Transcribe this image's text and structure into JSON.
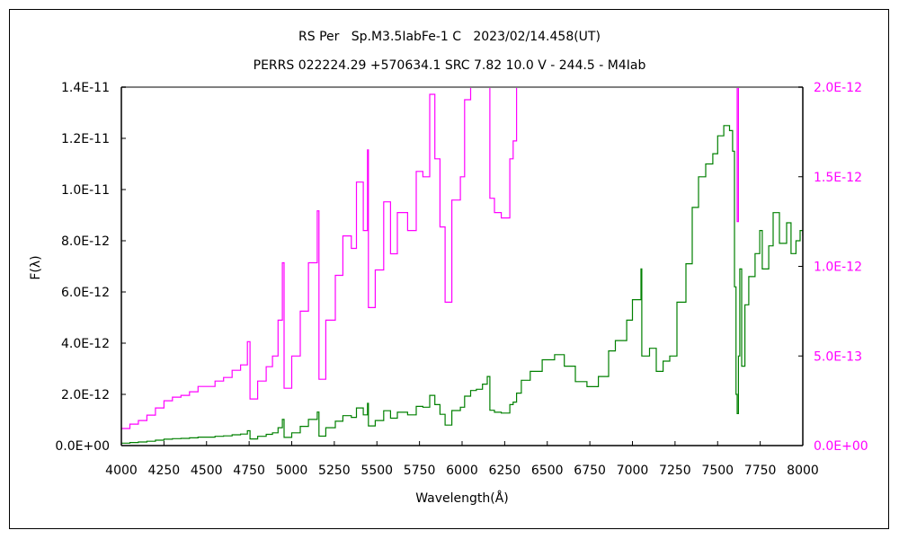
{
  "chart_data": {
    "type": "line",
    "title": "RS Per   Sp.M3.5IabFe-1 C   2023/02/14.458(UT)",
    "subtitle": "PERRS 022224.29 +570634.1 SRC 7.82 10.0 V - 244.5 - M4Iab",
    "xlabel": "Wavelength(Å)",
    "ylabel": "F(λ)",
    "xlim": [
      4000,
      8000
    ],
    "ylim_left": [
      0,
      1.4e-11
    ],
    "ylim_right": [
      0,
      2e-12
    ],
    "x_ticks": [
      4000,
      4250,
      4500,
      4750,
      5000,
      5250,
      5500,
      5750,
      6000,
      6250,
      6500,
      6750,
      7000,
      7250,
      7500,
      7750,
      8000
    ],
    "x_tick_labels": [
      "4000",
      "4250",
      "4500",
      "4750",
      "5000",
      "5250",
      "5500",
      "5750",
      "6000",
      "6250",
      "6500",
      "6750",
      "7000",
      "7250",
      "7500",
      "7750",
      "8000"
    ],
    "y_left_ticks": [
      0,
      2e-12,
      4e-12,
      6e-12,
      8e-12,
      1e-11,
      1.2e-11,
      1.4e-11
    ],
    "y_left_tick_labels": [
      "0.0E+00",
      "2.0E-12",
      "4.0E-12",
      "6.0E-12",
      "8.0E-12",
      "1.0E-11",
      "1.2E-11",
      "1.4E-11"
    ],
    "y_right_ticks": [
      0,
      5e-13,
      1e-12,
      1.5e-12,
      2e-12
    ],
    "y_right_tick_labels": [
      "0.0E+00",
      "5.0E-13",
      "1.0E-12",
      "1.5E-12",
      "2.0E-12"
    ],
    "grid": false,
    "flux_unit": 1e-12,
    "series": [
      {
        "name": "flux-left-axis",
        "axis": "left",
        "color": "#008000"
      },
      {
        "name": "flux-right-axis",
        "axis": "right",
        "color": "#ff00ff"
      }
    ],
    "x": [
      4000,
      4050,
      4100,
      4150,
      4200,
      4250,
      4300,
      4350,
      4400,
      4450,
      4500,
      4550,
      4600,
      4650,
      4700,
      4740,
      4755,
      4800,
      4850,
      4887,
      4920,
      4945,
      4955,
      5000,
      5050,
      5098,
      5150,
      5160,
      5200,
      5256,
      5300,
      5350,
      5380,
      5420,
      5445,
      5450,
      5490,
      5540,
      5580,
      5620,
      5680,
      5731,
      5770,
      5810,
      5840,
      5870,
      5900,
      5940,
      5990,
      6015,
      6050,
      6084,
      6120,
      6148,
      6163,
      6190,
      6230,
      6280,
      6300,
      6320,
      6348,
      6400,
      6470,
      6543,
      6600,
      6665,
      6733,
      6800,
      6860,
      6900,
      6966,
      7000,
      7050,
      7055,
      7100,
      7140,
      7180,
      7219,
      7261,
      7314,
      7351,
      7388,
      7430,
      7472,
      7500,
      7536,
      7570,
      7588,
      7599,
      7608,
      7615,
      7622,
      7630,
      7641,
      7660,
      7683,
      7720,
      7747,
      7762,
      7800,
      7826,
      7863,
      7905,
      7931,
      7960,
      7984,
      8000
    ],
    "y": [
      0.095,
      0.12,
      0.14,
      0.17,
      0.21,
      0.25,
      0.27,
      0.28,
      0.3,
      0.33,
      0.33,
      0.36,
      0.38,
      0.42,
      0.45,
      0.58,
      0.26,
      0.36,
      0.44,
      0.5,
      0.7,
      1.02,
      0.32,
      0.5,
      0.75,
      1.02,
      1.31,
      0.37,
      0.7,
      0.95,
      1.17,
      1.1,
      1.47,
      1.2,
      1.65,
      0.77,
      0.98,
      1.36,
      1.07,
      1.3,
      1.2,
      1.53,
      1.5,
      1.96,
      1.6,
      1.22,
      0.8,
      1.37,
      1.5,
      1.93,
      2.15,
      2.2,
      2.4,
      2.7,
      1.38,
      1.3,
      1.27,
      1.6,
      1.7,
      2.05,
      2.55,
      2.9,
      3.35,
      3.55,
      3.1,
      2.5,
      2.3,
      2.7,
      3.7,
      4.1,
      4.9,
      5.7,
      6.9,
      3.5,
      3.8,
      2.9,
      3.3,
      3.5,
      5.6,
      7.1,
      9.3,
      10.5,
      11.0,
      11.4,
      12.1,
      12.5,
      12.3,
      11.5,
      6.2,
      2.0,
      1.25,
      3.5,
      6.9,
      3.1,
      5.5,
      6.6,
      7.5,
      8.4,
      6.9,
      7.8,
      9.1,
      7.9,
      8.7,
      7.5,
      8.0,
      8.4,
      8.2
    ]
  }
}
